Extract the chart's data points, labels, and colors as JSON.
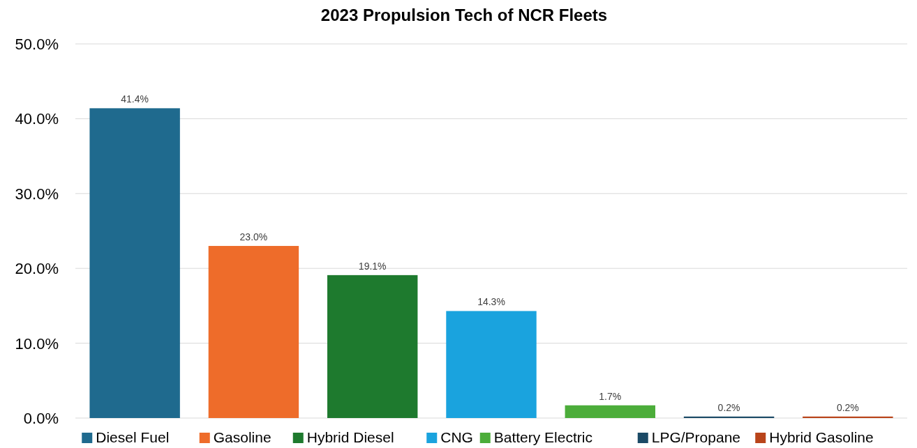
{
  "chart_data": {
    "type": "bar",
    "title": "2023 Propulsion Tech of NCR Fleets",
    "categories": [
      null,
      null,
      null,
      null,
      null,
      null,
      null
    ],
    "series": [
      {
        "name": "Diesel Fuel",
        "color": "#1f6a8e",
        "values": [
          41.4,
          null,
          null,
          null,
          null,
          null,
          null
        ],
        "value_labels": [
          "41.4%",
          null,
          null,
          null,
          null,
          null,
          null
        ]
      },
      {
        "name": "Gasoline",
        "color": "#ee6c2a",
        "values": [
          null,
          23.0,
          null,
          null,
          null,
          null,
          null
        ],
        "value_labels": [
          null,
          "23.0%",
          null,
          null,
          null,
          null,
          null
        ]
      },
      {
        "name": "Hybrid Diesel",
        "color": "#1e7a2e",
        "values": [
          null,
          null,
          19.1,
          null,
          null,
          null,
          null
        ],
        "value_labels": [
          null,
          null,
          "19.1%",
          null,
          null,
          null,
          null
        ]
      },
      {
        "name": "CNG",
        "color": "#1aa3de",
        "values": [
          null,
          null,
          null,
          14.3,
          null,
          null,
          null
        ],
        "value_labels": [
          null,
          null,
          null,
          "14.3%",
          null,
          null,
          null
        ]
      },
      {
        "name": "Battery Electric",
        "color": "#4cad3a",
        "values": [
          null,
          null,
          null,
          null,
          1.7,
          null,
          null
        ],
        "value_labels": [
          null,
          null,
          null,
          null,
          "1.7%",
          null,
          null
        ]
      },
      {
        "name": "LPG/Propane",
        "color": "#1b4a66",
        "values": [
          null,
          null,
          null,
          null,
          null,
          0.2,
          null
        ],
        "value_labels": [
          null,
          null,
          null,
          null,
          null,
          "0.2%",
          null
        ]
      },
      {
        "name": "Hybrid Gasoline",
        "color": "#b9441a",
        "values": [
          null,
          null,
          null,
          null,
          null,
          null,
          0.2
        ],
        "value_labels": [
          null,
          null,
          null,
          null,
          null,
          null,
          "0.2%"
        ]
      }
    ],
    "ylim": [
      0,
      50
    ],
    "yticks": [
      {
        "value": 0,
        "label": "0.0%"
      },
      {
        "value": 10,
        "label": "10.0%"
      },
      {
        "value": 20,
        "label": "20.0%"
      },
      {
        "value": 30,
        "label": "30.0%"
      },
      {
        "value": 40,
        "label": "40.0%"
      },
      {
        "value": 50,
        "label": "50.0%"
      }
    ],
    "grid": "y",
    "legend": "bottom"
  }
}
